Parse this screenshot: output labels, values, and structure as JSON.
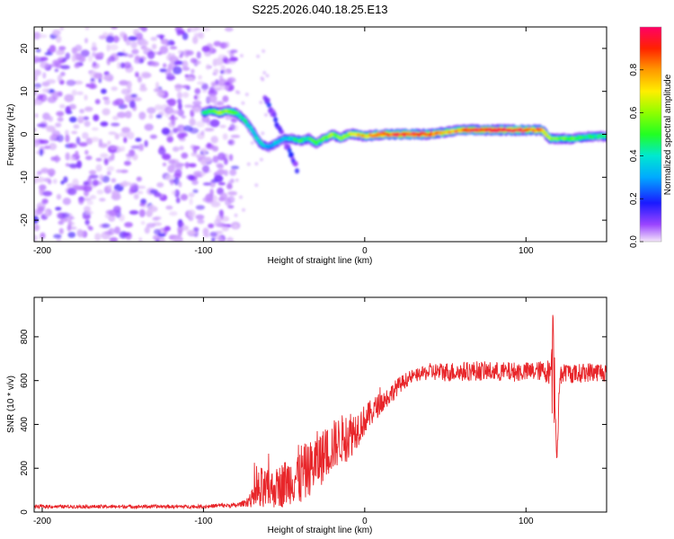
{
  "figure_title": "S225.2026.040.18.25.E13",
  "chart_data": [
    {
      "type": "heatmap",
      "name": "spectrogram",
      "xlabel": "Height of straight line (km)",
      "ylabel": "Frequency (Hz)",
      "xlim": [
        -205,
        150
      ],
      "ylim": [
        -25,
        25
      ],
      "xticks": [
        -200,
        -100,
        0,
        100
      ],
      "yticks": [
        -20,
        -10,
        0,
        10,
        20
      ],
      "noise_region_x": [
        -205,
        -80
      ],
      "ridge": {
        "x": [
          -100,
          -95,
          -90,
          -85,
          -80,
          -75,
          -70,
          -65,
          -60,
          -55,
          -50,
          -45,
          -40,
          -35,
          -30,
          -25,
          -20,
          -15,
          -10,
          -5,
          0,
          10,
          20,
          30,
          40,
          50,
          60,
          70,
          80,
          90,
          100,
          110,
          115,
          120,
          130,
          140,
          150
        ],
        "freq": [
          5,
          5.5,
          5,
          5.5,
          5,
          3.5,
          1,
          -2,
          -3,
          -2,
          -1,
          -1,
          -1.5,
          -1,
          -2,
          -1,
          0,
          -1,
          0,
          0,
          -0.5,
          0,
          0,
          0,
          0,
          0.5,
          1,
          1,
          1,
          1,
          1,
          1,
          -1,
          -1,
          -1,
          -0.5,
          -0.5
        ],
        "amplitude": [
          0.45,
          0.5,
          0.6,
          0.55,
          0.5,
          0.4,
          0.35,
          0.4,
          0.3,
          0.35,
          0.3,
          0.4,
          0.5,
          0.45,
          0.5,
          0.55,
          0.6,
          0.55,
          0.65,
          0.7,
          0.75,
          0.85,
          0.95,
          0.9,
          0.85,
          0.7,
          0.8,
          0.9,
          0.95,
          0.98,
          0.9,
          0.8,
          0.6,
          0.55,
          0.5,
          0.45,
          0.45
        ]
      },
      "diagonal_streak": {
        "x": [
          -62,
          -42
        ],
        "freq": [
          9,
          -8
        ]
      },
      "colorbar": {
        "label": "Normalized spectral amplitude",
        "range": [
          0,
          1
        ],
        "ticks": [
          0.0,
          0.2,
          0.4,
          0.6,
          0.8
        ],
        "tick_labels": [
          "0.0",
          "0.2",
          "0.4",
          "0.6",
          "0.8"
        ]
      }
    },
    {
      "type": "line",
      "name": "snr",
      "xlabel": "Height of straight line (km)",
      "ylabel": "SNR (10 * v/v)",
      "xlim": [
        -205,
        150
      ],
      "ylim": [
        0,
        980
      ],
      "xticks": [
        -200,
        -100,
        0,
        100
      ],
      "yticks": [
        0,
        200,
        400,
        600,
        800
      ],
      "series": [
        {
          "name": "SNR",
          "color": "#e8262a",
          "x": [
            -205,
            -180,
            -160,
            -140,
            -120,
            -100,
            -90,
            -80,
            -75,
            -70,
            -65,
            -60,
            -55,
            -50,
            -45,
            -40,
            -35,
            -30,
            -25,
            -20,
            -15,
            -10,
            -5,
            0,
            5,
            10,
            15,
            20,
            25,
            30,
            35,
            40,
            50,
            60,
            70,
            80,
            90,
            100,
            110,
            115,
            117,
            119,
            121,
            125,
            130,
            140,
            150
          ],
          "y": [
            25,
            25,
            25,
            25,
            25,
            25,
            30,
            30,
            40,
            60,
            90,
            100,
            110,
            130,
            150,
            170,
            190,
            230,
            260,
            300,
            330,
            350,
            380,
            420,
            460,
            500,
            530,
            570,
            600,
            620,
            630,
            640,
            640,
            640,
            645,
            640,
            640,
            640,
            645,
            640,
            800,
            230,
            620,
            640,
            630,
            640,
            640
          ],
          "noise": [
            8,
            8,
            8,
            8,
            8,
            8,
            10,
            10,
            14,
            40,
            120,
            90,
            90,
            110,
            110,
            150,
            120,
            140,
            120,
            120,
            110,
            120,
            90,
            70,
            60,
            50,
            45,
            40,
            35,
            30,
            30,
            40,
            45,
            45,
            45,
            45,
            45,
            45,
            45,
            60,
            60,
            60,
            45,
            45,
            45,
            45,
            45
          ]
        }
      ]
    }
  ]
}
